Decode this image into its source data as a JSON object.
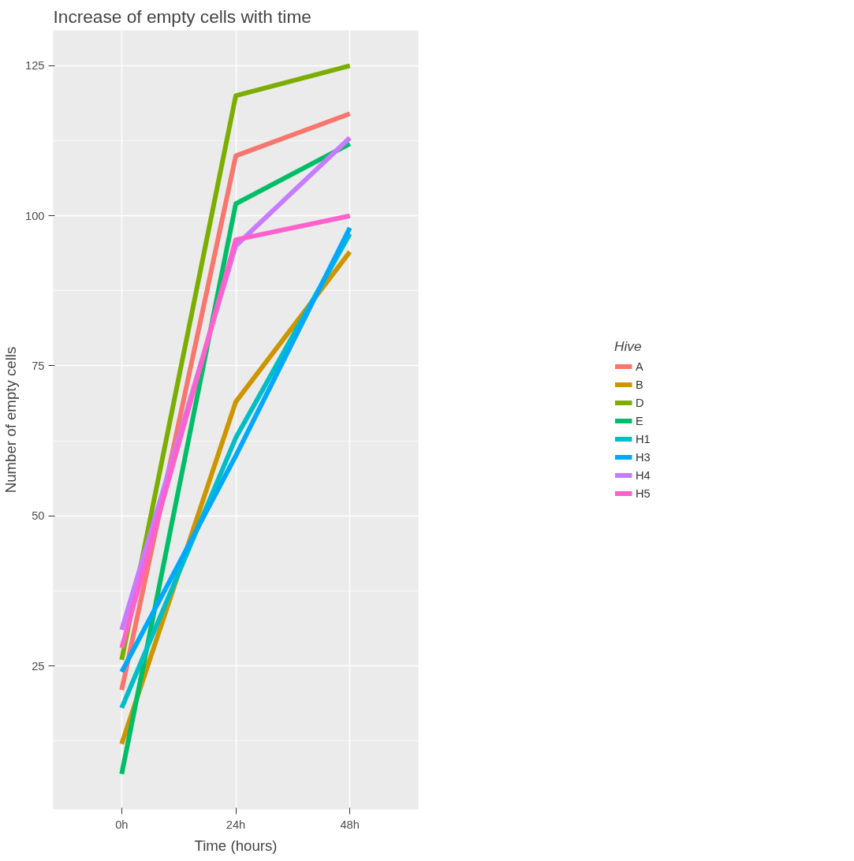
{
  "chart_data": {
    "type": "line",
    "title": "Increase of empty cells with time",
    "xlabel": "Time (hours)",
    "ylabel": "Number of empty cells",
    "legend_title": "Hive",
    "categories": [
      "0h",
      "24h",
      "48h"
    ],
    "series": [
      {
        "name": "A",
        "color": "#f8766d",
        "values": [
          21,
          110,
          117
        ]
      },
      {
        "name": "B",
        "color": "#cd9600",
        "values": [
          12,
          69,
          94
        ]
      },
      {
        "name": "D",
        "color": "#7cae00",
        "values": [
          26,
          120,
          125
        ]
      },
      {
        "name": "E",
        "color": "#00be67",
        "values": [
          7,
          102,
          112
        ]
      },
      {
        "name": "H1",
        "color": "#00bfc4",
        "values": [
          18,
          63,
          97
        ]
      },
      {
        "name": "H3",
        "color": "#00a9ff",
        "values": [
          24,
          60,
          98
        ]
      },
      {
        "name": "H4",
        "color": "#c77cff",
        "values": [
          31,
          95,
          113
        ]
      },
      {
        "name": "H5",
        "color": "#ff61cc",
        "values": [
          28,
          96,
          100
        ]
      }
    ],
    "ylim": [
      1.1,
      130.9
    ],
    "yticks": [
      25,
      50,
      75,
      100,
      125
    ],
    "grid": true,
    "legend": "right",
    "line_style": "solid",
    "marker": "none"
  }
}
